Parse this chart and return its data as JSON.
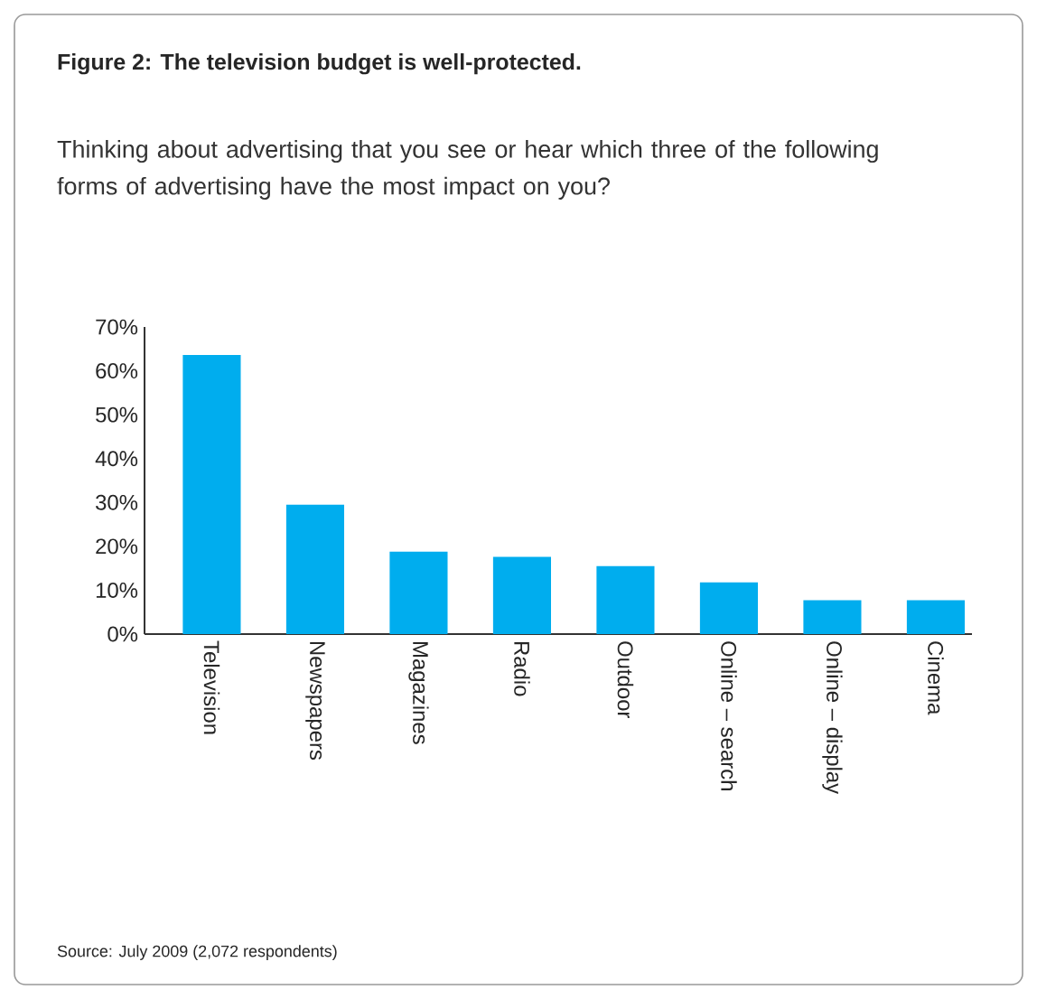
{
  "chart_data": {
    "type": "bar",
    "title": "Figure 2: The television budget is well-protected.",
    "subtitle": "Thinking about advertising that you see or hear which three of the following forms of advertising have the most impact on you?",
    "categories": [
      "Television",
      "Newspapers",
      "Magazines",
      "Radio",
      "Outdoor",
      "Online – search",
      "Online – display",
      "Cinema"
    ],
    "values": [
      63.6,
      29.5,
      18.8,
      17.6,
      15.5,
      11.8,
      7.7,
      7.7
    ],
    "color": "#00adee",
    "ylim": [
      0,
      70
    ],
    "yticks": [
      {
        "value": 0,
        "label": "0%"
      },
      {
        "value": 10,
        "label": "10%"
      },
      {
        "value": 20,
        "label": "20%"
      },
      {
        "value": 30,
        "label": "30%"
      },
      {
        "value": 40,
        "label": "40%"
      },
      {
        "value": 50,
        "label": "50%"
      },
      {
        "value": 60,
        "label": "60%"
      },
      {
        "value": 70,
        "label": "70%"
      }
    ],
    "annotations": [
      "Source: July 2009 (2,072 respondents)"
    ]
  }
}
